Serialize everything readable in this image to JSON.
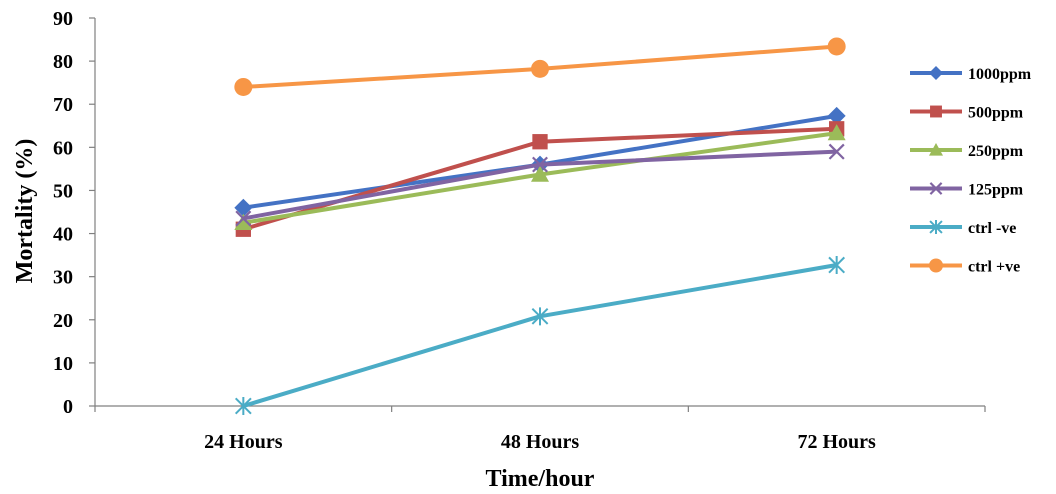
{
  "chart_data": {
    "type": "line",
    "categories": [
      "24 Hours",
      "48 Hours",
      "72 Hours"
    ],
    "xlabel": "Time/hour",
    "ylabel": "Mortality (%)",
    "ylim": [
      0,
      90
    ],
    "yticks": [
      0,
      10,
      20,
      30,
      40,
      50,
      60,
      70,
      80,
      90
    ],
    "grid": false,
    "legend_position": "right",
    "series": [
      {
        "name": "1000ppm",
        "values": [
          46,
          56,
          67.3
        ],
        "color": "#4472c4",
        "marker": "diamond"
      },
      {
        "name": "500ppm",
        "values": [
          41,
          61.3,
          64.3
        ],
        "color": "#c0504d",
        "marker": "square"
      },
      {
        "name": "250ppm",
        "values": [
          42.5,
          53.7,
          63.3
        ],
        "color": "#9bbb59",
        "marker": "triangle"
      },
      {
        "name": "125ppm",
        "values": [
          43.5,
          56,
          59
        ],
        "color": "#8064a2",
        "marker": "x"
      },
      {
        "name": "ctrl -ve",
        "values": [
          0,
          20.8,
          32.7
        ],
        "color": "#4bacc6",
        "marker": "star"
      },
      {
        "name": "ctrl +ve",
        "values": [
          74,
          78.2,
          83.4
        ],
        "color": "#f79646",
        "marker": "circle"
      }
    ]
  }
}
